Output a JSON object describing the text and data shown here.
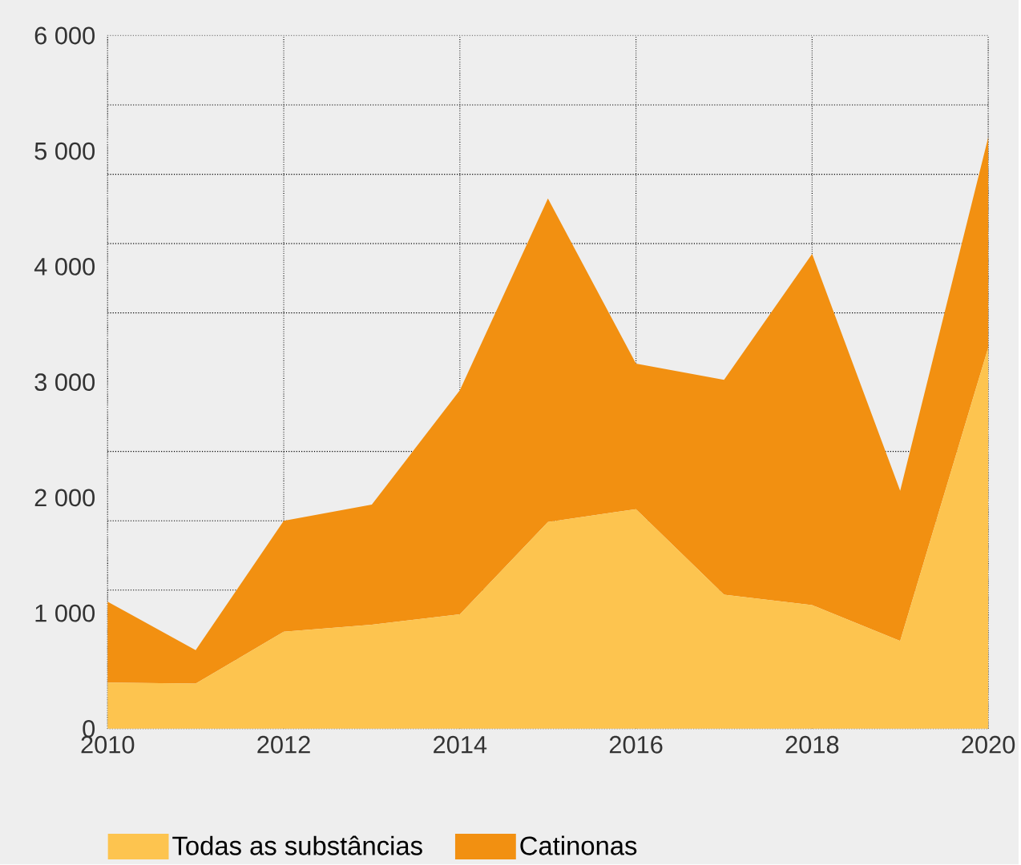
{
  "chart_data": {
    "type": "area",
    "stacked": true,
    "x": [
      2010,
      2011,
      2012,
      2013,
      2014,
      2015,
      2016,
      2017,
      2018,
      2019,
      2020
    ],
    "series": [
      {
        "name": "Todas as substâncias",
        "color": "#fdc44f",
        "values": [
          400,
          390,
          840,
          900,
          990,
          1790,
          1900,
          1160,
          1070,
          760,
          3300
        ]
      },
      {
        "name": "Catinonas",
        "color": "#f29011",
        "values": [
          700,
          290,
          960,
          1040,
          1940,
          2800,
          1260,
          1860,
          3040,
          1300,
          1820
        ]
      }
    ],
    "xlim": [
      2010,
      2020
    ],
    "xticks": [
      2010,
      2012,
      2014,
      2016,
      2018,
      2020
    ],
    "ylim": [
      0,
      6000
    ],
    "yticks": [
      0,
      {
        "value": 600,
        "label": null
      },
      {
        "value": 1000,
        "label": "1 000"
      },
      {
        "value": 1200,
        "label": null
      },
      {
        "value": 1800,
        "label": null
      },
      {
        "value": 2000,
        "label": "2 000"
      },
      {
        "value": 2400,
        "label": null
      },
      {
        "value": 3000,
        "label": "3 000"
      },
      {
        "value": 3600,
        "label": null
      },
      {
        "value": 4000,
        "label": "4 000"
      },
      {
        "value": 4200,
        "label": null
      },
      {
        "value": 4800,
        "label": null
      },
      {
        "value": 5000,
        "label": "5 000"
      },
      {
        "value": 5400,
        "label": null
      },
      {
        "value": 6000,
        "label": "6 000"
      }
    ],
    "grid": true,
    "legend": "bottom"
  }
}
